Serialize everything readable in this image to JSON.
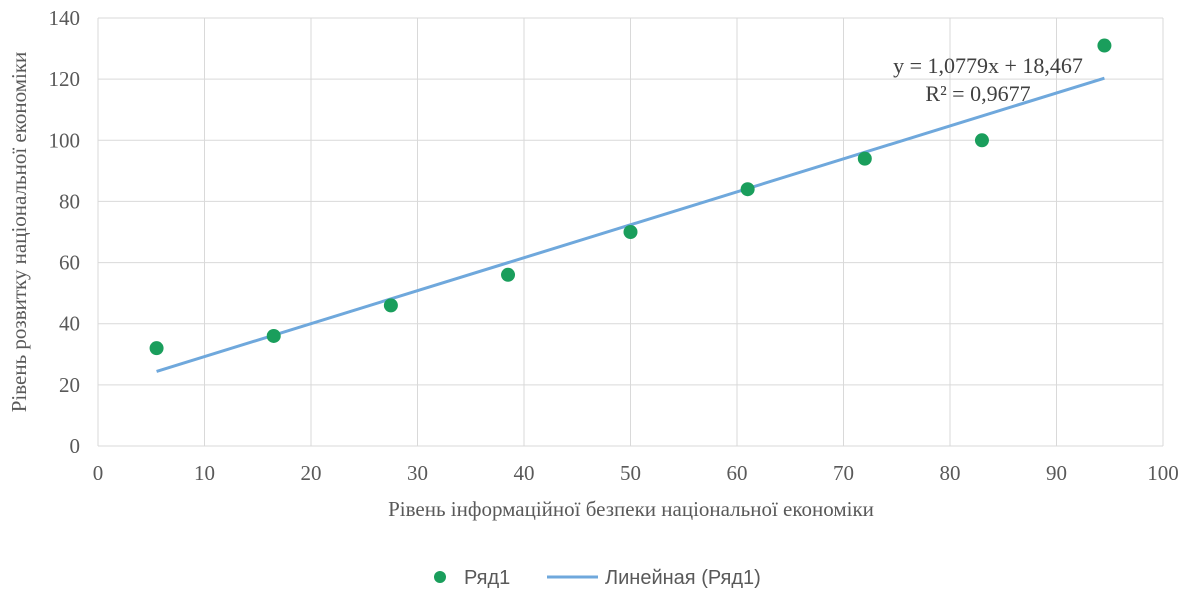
{
  "chart_data": {
    "type": "scatter",
    "xlabel": "Рівень інформаційної безпеки національної економіки",
    "ylabel": "Рівень розвитку національної економіки",
    "xlim": [
      0,
      100
    ],
    "ylim": [
      0,
      140
    ],
    "x_ticks": [
      0,
      10,
      20,
      30,
      40,
      50,
      60,
      70,
      80,
      90,
      100
    ],
    "y_ticks": [
      0,
      20,
      40,
      60,
      80,
      100,
      120,
      140
    ],
    "grid": true,
    "series": [
      {
        "name": "Ряд1",
        "color": "#1a9e5c",
        "points": [
          {
            "x": 5.5,
            "y": 32
          },
          {
            "x": 16.5,
            "y": 36
          },
          {
            "x": 27.5,
            "y": 46
          },
          {
            "x": 38.5,
            "y": 56
          },
          {
            "x": 50,
            "y": 70
          },
          {
            "x": 61,
            "y": 84
          },
          {
            "x": 72,
            "y": 94
          },
          {
            "x": 83,
            "y": 100
          },
          {
            "x": 94.5,
            "y": 131
          }
        ]
      }
    ],
    "trendline": {
      "name": "Линейная (Ряд1)",
      "color": "#6fa8dc",
      "slope": 1.0779,
      "intercept": 18.467,
      "x_start": 5.5,
      "x_end": 94.5,
      "equation": "y = 1,0779x + 18,467",
      "r_squared": "R² = 0,9677"
    },
    "legend_position": "bottom"
  }
}
